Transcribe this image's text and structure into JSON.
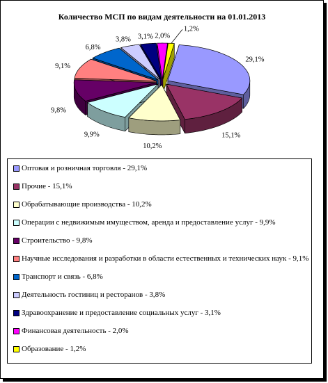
{
  "chart_data": {
    "type": "pie",
    "title": "Количество МСП по видам деятельности на 01.01.2013",
    "slices": [
      {
        "legend": "Оптовая и розничная торговля - 29,1%",
        "label": "29,1%",
        "value": 29.1,
        "color": "#9999ff"
      },
      {
        "legend": "Прочие - 15,1%",
        "label": "15,1%",
        "value": 15.1,
        "color": "#993366"
      },
      {
        "legend": "Обрабатывающие производства - 10,2%",
        "label": "10,2%",
        "value": 10.2,
        "color": "#ffffcc"
      },
      {
        "legend": "Операции с недвижимым имуществом, аренда и предоставление услуг - 9,9%",
        "label": "9,9%",
        "value": 9.9,
        "color": "#ccffff"
      },
      {
        "legend": "Строительство - 9,8%",
        "label": "9,8%",
        "value": 9.8,
        "color": "#660066"
      },
      {
        "legend": "Научные исследования и разработки в области естественных и технических наук - 9,1%",
        "label": "9,1%",
        "value": 9.1,
        "color": "#ff8080"
      },
      {
        "legend": "Транспорт и связь - 6,8%",
        "label": "6,8%",
        "value": 6.8,
        "color": "#0066cc"
      },
      {
        "legend": "Деятельность гостиниц и ресторанов - 3,8%",
        "label": "3,8%",
        "value": 3.8,
        "color": "#ccccff"
      },
      {
        "legend": "Здравоохранение и предоставление социальных услуг - 3,1%",
        "label": "3,1%",
        "value": 3.1,
        "color": "#000080"
      },
      {
        "legend": "Финансовая деятельность - 2,0%",
        "label": "2,0%",
        "value": 2.0,
        "color": "#ff00ff"
      },
      {
        "legend": "Образование - 1,2%",
        "label": "1,2%",
        "value": 1.2,
        "color": "#ffff00"
      }
    ],
    "exploded": true,
    "three_d": true,
    "legend_position": "bottom"
  }
}
